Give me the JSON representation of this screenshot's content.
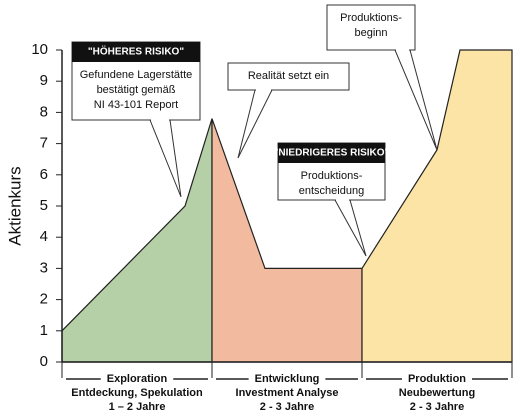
{
  "chart_data": {
    "type": "area",
    "ylabel": "Aktienkurs",
    "ylim": [
      0,
      10
    ],
    "yticks": [
      0,
      1,
      2,
      3,
      4,
      5,
      6,
      7,
      8,
      9,
      10
    ],
    "xlim": [
      0,
      450
    ],
    "series": [
      {
        "color": "#b5cfa6",
        "x": [
          0,
          123,
          150
        ],
        "values": [
          1,
          5,
          7.8
        ],
        "label": [
          "Exploration",
          "Entdeckung, Spekulation",
          "1 – 2 Jahre"
        ]
      },
      {
        "color": "#f2bba0",
        "x": [
          150,
          203,
          300
        ],
        "values": [
          7.8,
          3,
          3
        ],
        "label": [
          "Entwicklung",
          "Investment Analyse",
          "2 - 3 Jahre"
        ]
      },
      {
        "color": "#fce4a6",
        "x": [
          300,
          375,
          398,
          450
        ],
        "values": [
          3,
          6.8,
          10,
          10
        ],
        "label": [
          "Produktion",
          "Neubewertung",
          "2 - 3 Jahre"
        ]
      }
    ],
    "annotations": [
      {
        "badge": "\"HÖHERES RISIKO\"",
        "text": [
          "Gefundene Lagerstätte",
          "bestätigt gemäß",
          "NI 43-101 Report"
        ]
      },
      {
        "text": [
          "Realität setzt ein"
        ]
      },
      {
        "badge": "\"NIEDRIGERES RISIKO\"",
        "text": [
          "Produktions-",
          "entscheidung"
        ]
      },
      {
        "text": [
          "Produktions-",
          "beginn"
        ]
      }
    ]
  }
}
